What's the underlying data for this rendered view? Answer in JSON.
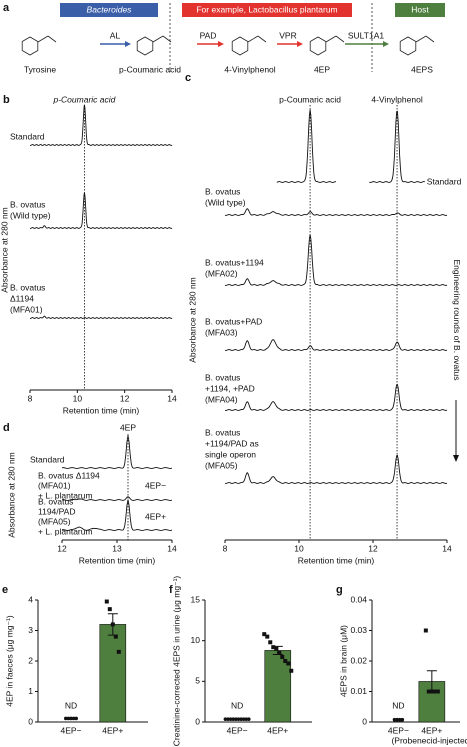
{
  "panel_a": {
    "label": "a",
    "groups": [
      "Bacteroides",
      "For example, Lactobacillus plantarum",
      "Host"
    ],
    "compounds": [
      "Tyrosine",
      "p-Coumaric acid",
      "4-Vinylphenol",
      "4EP",
      "4EPS"
    ],
    "enzymes": [
      "AL",
      "PAD",
      "VPR",
      "SULT1A1"
    ]
  },
  "panel_b": {
    "label": "b",
    "title": "p-Coumaric acid",
    "traces": [
      [
        "Standard"
      ],
      [
        "B. ovatus",
        "(Wild type)"
      ],
      [
        "B. ovatus",
        "Δ1194",
        "(MFA01)"
      ]
    ],
    "y_label": "Absorbance at 280 nm",
    "x_label": "Retention time (min)",
    "xlim": [
      8,
      14
    ],
    "xticks": [
      8,
      10,
      12,
      14
    ]
  },
  "panel_c": {
    "label": "c",
    "peaks": [
      "p-Coumaric acid",
      "4-Vinylphenol"
    ],
    "standard": "Standard",
    "traces": [
      [
        "B. ovatus",
        "(Wild type)"
      ],
      [
        "B. ovatus+1194",
        "(MFA02)"
      ],
      [
        "B. ovatus+PAD",
        "(MFA03)"
      ],
      [
        "B. ovatus",
        "+1194, +PAD",
        "(MFA04)"
      ],
      [
        "B. ovatus",
        "+1194/PAD as",
        "single operon",
        "(MFA05)"
      ]
    ],
    "y_label": "Absorbance at 280 nm",
    "x_label": "Retention time (min)",
    "xlim": [
      8,
      14
    ],
    "xticks": [
      8,
      10,
      12,
      14
    ],
    "side_note": "Engineering rounds of B. ovatus"
  },
  "panel_d": {
    "label": "d",
    "peak": "4EP",
    "traces": [
      [
        "Standard"
      ],
      [
        "B. ovatus Δ1194",
        "(MFA01)",
        "+ L. plantarum"
      ],
      [
        "B. ovatus",
        "1194/PAD",
        "(MFA05)",
        "+ L. plantarum"
      ]
    ],
    "tags": [
      "4EP−",
      "4EP+"
    ],
    "y_label": "Absorbance at 280 nm",
    "x_label": "Retention time (min)",
    "xlim": [
      12,
      14
    ],
    "xticks": [
      12,
      13,
      14
    ]
  },
  "chart_data": [
    {
      "type": "bar",
      "label": "e",
      "y_label": "4EP in faeces (μg mg⁻¹)",
      "categories": [
        "4EP−",
        "4EP+"
      ],
      "values": [
        0,
        3.2
      ],
      "errors": [
        0,
        0.35
      ],
      "points": [
        [
          0.05,
          0.05,
          0.05,
          0.05,
          0.05
        ],
        [
          3.95,
          3.7,
          3.2,
          2.8,
          2.3
        ]
      ],
      "annotations": [
        "ND"
      ],
      "color": "#4f7f3f",
      "ylim": [
        0,
        4
      ],
      "yticks": [
        0,
        1,
        2,
        3,
        4
      ]
    },
    {
      "type": "bar",
      "label": "f",
      "y_label": "Creatinine-corrected 4EPS in urine (μg mg⁻¹)",
      "categories": [
        "4EP−",
        "4EP+"
      ],
      "values": [
        0,
        8.8
      ],
      "errors": [
        0,
        0.5
      ],
      "points": [
        [
          0.1,
          0.1,
          0.1,
          0.1,
          0.1,
          0.1,
          0.1,
          0.1,
          0.1,
          0.1
        ],
        [
          10.8,
          10.5,
          9.8,
          9.2,
          9.0,
          8.5,
          8.0,
          7.5,
          7.2,
          6.3
        ]
      ],
      "annotations": [
        "ND"
      ],
      "color": "#4f7f3f",
      "ylim": [
        0,
        15
      ],
      "yticks": [
        0,
        5,
        10,
        15
      ]
    },
    {
      "type": "bar",
      "label": "g",
      "y_label": "4EPS in brain (μM)",
      "categories": [
        "4EP−",
        "4EP+"
      ],
      "category_note": "(Probenecid-injected)",
      "values": [
        0,
        0.0133
      ],
      "errors": [
        0,
        0.0035
      ],
      "points": [
        [
          0.0001,
          0.0001,
          0.0001,
          0.0001
        ],
        [
          0.03,
          0.01,
          0.01,
          0.01,
          0.01
        ]
      ],
      "annotations": [
        "ND"
      ],
      "color": "#4f7f3f",
      "ylim": [
        0,
        0.04
      ],
      "yticks": [
        0,
        0.01,
        0.02,
        0.03,
        0.04
      ]
    }
  ]
}
